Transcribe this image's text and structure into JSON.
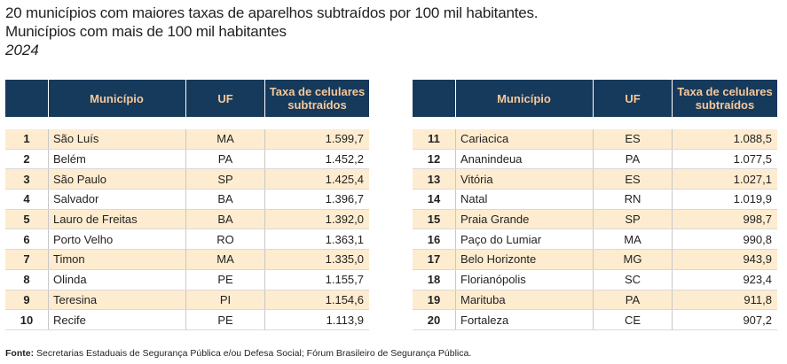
{
  "title": "20 municípios com maiores taxas de aparelhos subtraídos por 100 mil habitantes.",
  "subtitle": "Municípios com mais de 100 mil habitantes",
  "year": "2024",
  "headers": {
    "municipio": "Município",
    "uf": "UF",
    "rate_line1": "Taxa de celulares",
    "rate_line2": "subtraídos"
  },
  "left_rows": [
    {
      "rank": "1",
      "municipio": "São Luís",
      "uf": "MA",
      "rate": "1.599,7"
    },
    {
      "rank": "2",
      "municipio": "Belém",
      "uf": "PA",
      "rate": "1.452,2"
    },
    {
      "rank": "3",
      "municipio": "São Paulo",
      "uf": "SP",
      "rate": "1.425,4"
    },
    {
      "rank": "4",
      "municipio": "Salvador",
      "uf": "BA",
      "rate": "1.396,7"
    },
    {
      "rank": "5",
      "municipio": "Lauro de Freitas",
      "uf": "BA",
      "rate": "1.392,0"
    },
    {
      "rank": "6",
      "municipio": "Porto Velho",
      "uf": "RO",
      "rate": "1.363,1"
    },
    {
      "rank": "7",
      "municipio": "Timon",
      "uf": "MA",
      "rate": "1.335,0"
    },
    {
      "rank": "8",
      "municipio": "Olinda",
      "uf": "PE",
      "rate": "1.155,7"
    },
    {
      "rank": "9",
      "municipio": "Teresina",
      "uf": "PI",
      "rate": "1.154,6"
    },
    {
      "rank": "10",
      "municipio": "Recife",
      "uf": "PE",
      "rate": "1.113,9"
    }
  ],
  "right_rows": [
    {
      "rank": "11",
      "municipio": "Cariacica",
      "uf": "ES",
      "rate": "1.088,5"
    },
    {
      "rank": "12",
      "municipio": "Ananindeua",
      "uf": "PA",
      "rate": "1.077,5"
    },
    {
      "rank": "13",
      "municipio": "Vitória",
      "uf": "ES",
      "rate": "1.027,1"
    },
    {
      "rank": "14",
      "municipio": "Natal",
      "uf": "RN",
      "rate": "1.019,9"
    },
    {
      "rank": "15",
      "municipio": "Praia Grande",
      "uf": "SP",
      "rate": "998,7"
    },
    {
      "rank": "16",
      "municipio": "Paço do Lumiar",
      "uf": "MA",
      "rate": "990,8"
    },
    {
      "rank": "17",
      "municipio": "Belo Horizonte",
      "uf": "MG",
      "rate": "943,9"
    },
    {
      "rank": "18",
      "municipio": "Florianópolis",
      "uf": "SC",
      "rate": "923,4"
    },
    {
      "rank": "19",
      "municipio": "Marituba",
      "uf": "PA",
      "rate": "911,8"
    },
    {
      "rank": "20",
      "municipio": "Fortaleza",
      "uf": "CE",
      "rate": "907,2"
    }
  ],
  "source_label": "Fonte:",
  "source_text": " Secretarias Estaduais de Segurança Pública e/ou Defesa Social; Fórum Brasileiro de Segurança Pública.",
  "colors": {
    "header_bg": "#163a5c",
    "header_text": "#f6c89a",
    "row_highlight": "#fdeccf"
  }
}
